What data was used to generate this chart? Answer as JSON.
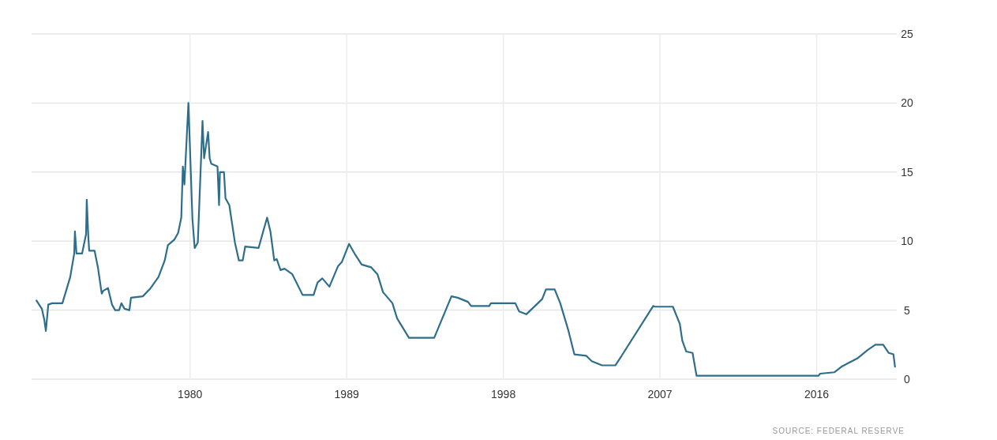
{
  "chart_data": {
    "type": "line",
    "x": [
      1971.18,
      1971.49,
      1971.63,
      1971.72,
      1971.86,
      1972.08,
      1972.67,
      1973.12,
      1973.35,
      1973.39,
      1973.48,
      1973.8,
      1974.03,
      1974.07,
      1974.16,
      1974.21,
      1974.52,
      1974.71,
      1974.93,
      1975.02,
      1975.29,
      1975.52,
      1975.7,
      1975.93,
      1976.06,
      1976.24,
      1976.52,
      1976.61,
      1977.29,
      1977.74,
      1978.19,
      1978.55,
      1978.73,
      1979.1,
      1979.32,
      1979.5,
      1979.59,
      1979.68,
      1979.91,
      1980.14,
      1980.27,
      1980.45,
      1980.72,
      1980.81,
      1981.04,
      1981.13,
      1981.22,
      1981.58,
      1981.67,
      1981.72,
      1981.95,
      1982.04,
      1982.26,
      1982.58,
      1982.81,
      1983.03,
      1983.17,
      1983.94,
      1984.16,
      1984.43,
      1984.62,
      1984.84,
      1984.98,
      1985.2,
      1985.43,
      1985.88,
      1986.47,
      1987.1,
      1987.33,
      1987.6,
      1988.01,
      1988.51,
      1988.73,
      1989.14,
      1989.5,
      1989.86,
      1990.41,
      1990.77,
      1991.09,
      1991.63,
      1991.9,
      1992.58,
      1994.03,
      1995.02,
      1995.38,
      1995.97,
      1996.15,
      1997.19,
      1997.29,
      1998.69,
      1998.91,
      1999.32,
      2000.23,
      2000.45,
      2000.95,
      2001.27,
      2001.72,
      2002.08,
      2002.76,
      2003.08,
      2003.67,
      2004.43,
      2004.8,
      2006.61,
      2006.7,
      2007.74,
      2008.14,
      2008.28,
      2008.51,
      2008.87,
      2009.1,
      2016.11,
      2016.2,
      2017.01,
      2017.42,
      2017.87,
      2018.33,
      2018.91,
      2019.37,
      2019.82,
      2020.14,
      2020.41,
      2020.5
    ],
    "series": [
      {
        "color": "#2f6e8a",
        "values": [
          5.7,
          5.1,
          4.3,
          3.5,
          5.4,
          5.5,
          5.5,
          7.4,
          9.1,
          10.7,
          9.1,
          9.1,
          10.5,
          13.0,
          10.3,
          9.3,
          9.3,
          8.1,
          6.2,
          6.4,
          6.6,
          5.4,
          5.0,
          5.0,
          5.5,
          5.1,
          5.0,
          5.9,
          6.0,
          6.6,
          7.4,
          8.6,
          9.7,
          10.1,
          10.6,
          11.7,
          15.4,
          14.1,
          20.0,
          11.6,
          9.5,
          9.9,
          18.7,
          16.0,
          17.9,
          16.0,
          15.6,
          15.4,
          12.6,
          15.0,
          15.0,
          13.1,
          12.6,
          9.9,
          8.6,
          8.6,
          9.6,
          9.5,
          10.5,
          11.7,
          10.7,
          8.6,
          8.7,
          7.9,
          8.0,
          7.6,
          6.1,
          6.1,
          7.0,
          7.3,
          6.7,
          8.2,
          8.5,
          9.8,
          9.0,
          8.3,
          8.1,
          7.6,
          6.3,
          5.5,
          4.4,
          3.0,
          3.0,
          6.0,
          5.9,
          5.6,
          5.3,
          5.3,
          5.5,
          5.5,
          4.9,
          4.7,
          5.8,
          6.5,
          6.5,
          5.5,
          3.6,
          1.8,
          1.7,
          1.3,
          1.0,
          1.0,
          1.7,
          5.3,
          5.25,
          5.25,
          4.0,
          2.8,
          2.0,
          1.9,
          0.25,
          0.25,
          0.4,
          0.5,
          0.9,
          1.2,
          1.5,
          2.1,
          2.5,
          2.5,
          1.9,
          1.8,
          0.9
        ]
      }
    ],
    "xlim": [
      1970.9,
      2020.6
    ],
    "xticks": [
      1980,
      1989,
      1998,
      2007,
      2016
    ],
    "ylim": [
      0,
      25
    ],
    "yticks": [
      0,
      5,
      10,
      15,
      20,
      25
    ],
    "grid": true,
    "line_style": "solid",
    "annotations": [
      "SOURCE: FEDERAL RESERVE"
    ]
  }
}
